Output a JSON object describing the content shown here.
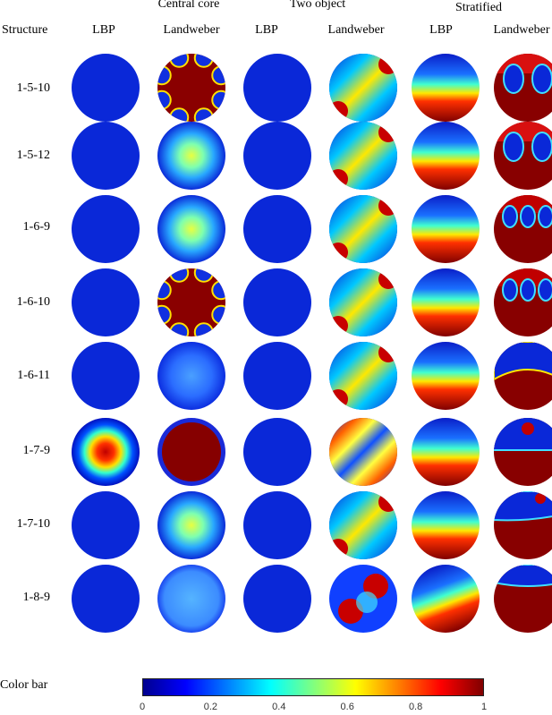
{
  "header": {
    "structure_label": "Structure",
    "groups": [
      "Central core",
      "Two object",
      "Stratified"
    ],
    "subcolumns": [
      "LBP",
      "Landweber",
      "LBP",
      "Landweber",
      "LBP",
      "Landweber"
    ]
  },
  "rows": [
    "1-5-10",
    "1-5-12",
    "1-6-9",
    "1-6-10",
    "1-6-11",
    "1-7-9",
    "1-7-10",
    "1-8-9"
  ],
  "images": [
    [
      "blue",
      "red-core-blue-bumps",
      "blue",
      "diagonal-band",
      "stratified",
      "stratified-two-lobes"
    ],
    [
      "blue",
      "yellow-center-blue-edge",
      "blue",
      "diagonal-band",
      "stratified",
      "stratified-two-lobes"
    ],
    [
      "blue",
      "yellow-center-blue-edge",
      "blue",
      "diagonal-band",
      "stratified",
      "stratified-three-lobes"
    ],
    [
      "blue",
      "red-core-blue-bumps",
      "blue",
      "diagonal-band",
      "stratified",
      "stratified-three-lobes"
    ],
    [
      "blue",
      "light-blue-disk",
      "blue",
      "diagonal-band-corners",
      "stratified",
      "stratified-wave"
    ],
    [
      "red-spot-center",
      "red-full-disk",
      "blue",
      "double-band",
      "stratified",
      "stratified-lobes-low"
    ],
    [
      "blue",
      "yellow-center-blue-edge",
      "blue",
      "diagonal-band",
      "stratified",
      "stratified-arc"
    ],
    [
      "blue",
      "light-blue-uniform",
      "blue",
      "mixed-blobs",
      "stratified-tilted",
      "stratified-dome"
    ]
  ],
  "colorbar": {
    "label": "Color bar",
    "ticks": [
      "0",
      "0.2",
      "0.4",
      "0.6",
      "0.8",
      "1"
    ],
    "colormap": "jet",
    "range": [
      0,
      1
    ]
  }
}
